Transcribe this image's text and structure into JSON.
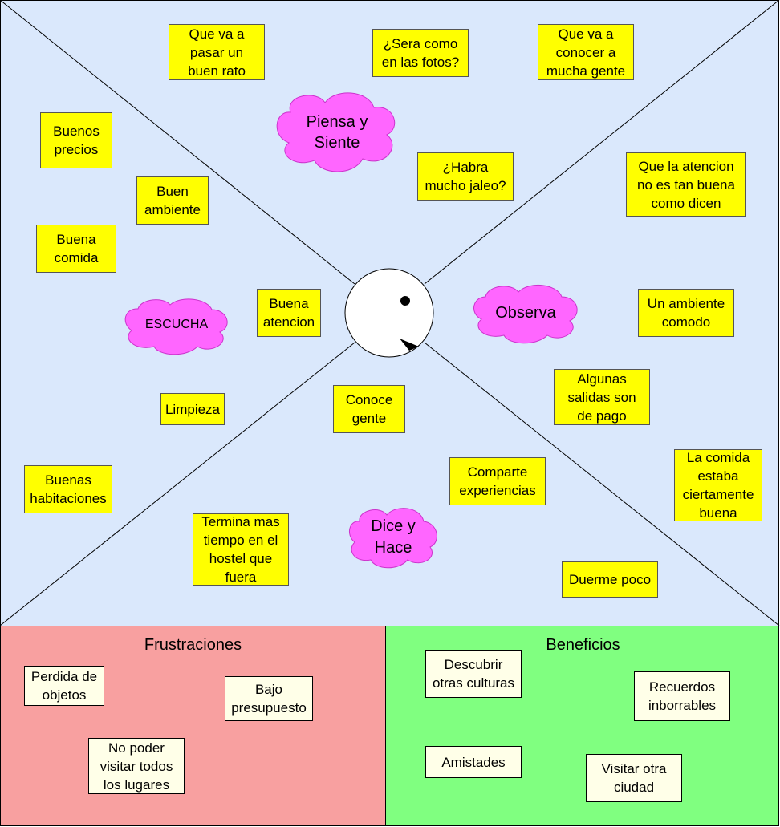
{
  "map": {
    "clouds": {
      "think_feel": "Piensa y\nSiente",
      "observe": "Observa",
      "listen": "ESCUCHA",
      "say_do": "Dice y\nHace"
    },
    "notes": {
      "pasar_buen_rato": "Que va a\npasar un\nbuen rato",
      "como_en_fotos": "¿Sera como\nen las fotos?",
      "conocer_gente": "Que va a\nconocer a\nmucha gente",
      "buenos_precios": "Buenos\nprecios",
      "buen_ambiente": "Buen\nambiente",
      "habra_jaleo": "¿Habra\nmucho jaleo?",
      "atencion_no_buena": "Que la atencion\nno es tan buena\ncomo dicen",
      "buena_comida": "Buena\ncomida",
      "buena_atencion": "Buena\natencion",
      "ambiente_comodo": "Un ambiente\ncomodo",
      "salidas_pago": "Algunas\nsalidas son\nde pago",
      "limpieza": "Limpieza",
      "conoce_gente": "Conoce\ngente",
      "buenas_habitaciones": "Buenas\nhabitaciones",
      "comparte_experiencias": "Comparte\nexperiencias",
      "comida_buena": "La comida\nestaba\nciertamente\nbuena",
      "termina_hostel": "Termina mas\ntiempo en el\nhostel que\nfuera",
      "duerme_poco": "Duerme poco"
    }
  },
  "frustrations": {
    "title": "Frustraciones",
    "items": {
      "perdida_objetos": "Perdida de\nobjetos",
      "bajo_presupuesto": "Bajo\npresupuesto",
      "no_visitar": "No poder\nvisitar todos\nlos lugares"
    }
  },
  "benefits": {
    "title": "Beneficios",
    "items": {
      "descubrir_culturas": "Descubrir\notras culturas",
      "recuerdos": "Recuerdos\ninborrables",
      "amistades": "Amistades",
      "visitar_ciudad": "Visitar otra\nciudad"
    }
  },
  "colors": {
    "map_bg": "#dae8fc",
    "note_bg": "#ffff00",
    "cloud_fill": "#ff66ff",
    "frustrations_bg": "#f8a0a0",
    "benefits_bg": "#80ff80",
    "card_bg": "#ffffe8"
  }
}
